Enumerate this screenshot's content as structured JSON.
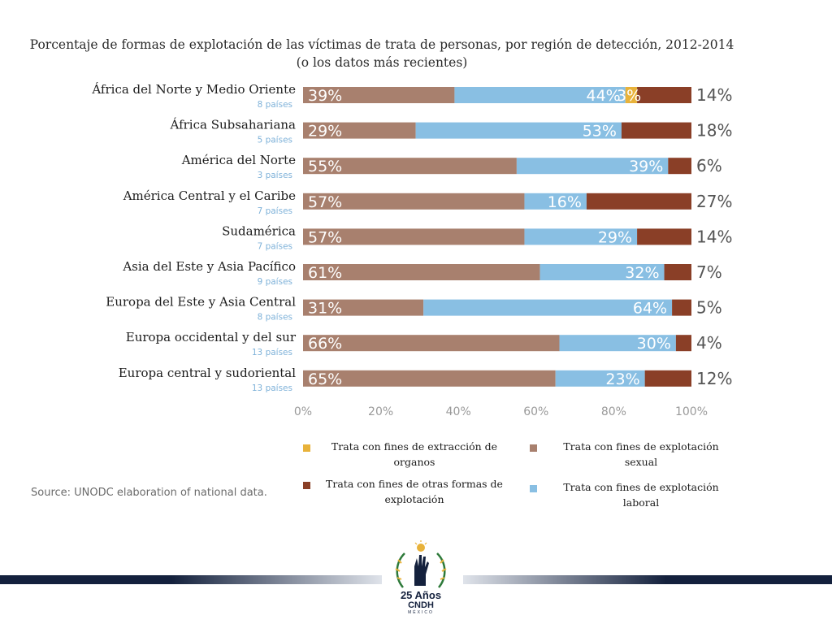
{
  "chart_data": {
    "type": "bar",
    "stacked": true,
    "orientation": "horizontal",
    "title": "Porcentaje de formas de explotación de las víctimas de trata de personas, por región de detección, 2012-2014 (o los datos más recientes)",
    "categories": [
      "África del Norte y Medio Oriente",
      "África Subsahariana",
      "América del Norte",
      "América Central y el Caribe",
      "Sudamérica",
      "Asia del Este y Asia Pacífico",
      "Europa del Este y Asia Central",
      "Europa occidental y del sur",
      "Europa central y sudoriental"
    ],
    "category_notes": [
      "8 países",
      "5 países",
      "3 países",
      "7 países",
      "7 países",
      "9 países",
      "8 países",
      "13 países",
      "13 países"
    ],
    "series": [
      {
        "name": "Trata con fines de explotación sexual",
        "color": "#a8806e",
        "values": [
          39,
          29,
          55,
          57,
          57,
          61,
          31,
          66,
          65
        ],
        "labels": [
          "39%",
          "29%",
          "55%",
          "57%",
          "57%",
          "61%",
          "31%",
          "66%",
          "65%"
        ]
      },
      {
        "name": "Trata con fines de explotación laboral",
        "color": "#89bfe3",
        "values": [
          44,
          53,
          39,
          16,
          29,
          32,
          64,
          30,
          23
        ],
        "labels": [
          "44%",
          "53%",
          "39%",
          "16%",
          "29%",
          "32%",
          "64%",
          "30%",
          "23%"
        ]
      },
      {
        "name": "Trata con fines de extracción de organos",
        "color": "#e8b23a",
        "values": [
          3,
          0,
          0,
          0,
          0,
          0,
          0,
          0,
          0
        ],
        "labels": [
          "3%",
          "",
          "",
          "",
          "",
          "",
          "",
          "",
          ""
        ]
      },
      {
        "name": "Trata con fines de otras formas de explotación",
        "color": "#8a3f27",
        "values": [
          14,
          18,
          6,
          27,
          14,
          7,
          5,
          4,
          12
        ],
        "labels": [
          "14%",
          "18%",
          "6%",
          "27%",
          "14%",
          "7%",
          "5%",
          "4%",
          "12%"
        ]
      }
    ],
    "xlim": [
      0,
      100
    ],
    "xticks": [
      "0%",
      "20%",
      "40%",
      "60%",
      "80%",
      "100%"
    ],
    "grid": false,
    "legend_position": "bottom"
  },
  "legend": [
    {
      "label": "Trata con fines de extracción de organos",
      "color": "#e8b23a"
    },
    {
      "label": "Trata con fines de explotación sexual",
      "color": "#a8806e"
    },
    {
      "label": "Trata con fines de otras formas de explotación",
      "color": "#8a3f27"
    },
    {
      "label": "Trata con fines de explotación laboral",
      "color": "#89bfe3"
    }
  ],
  "source": "Source: UNODC elaboration of national data.",
  "logo": {
    "anniversary": "25 Años",
    "name": "CNDH",
    "country": "MÉXICO"
  }
}
